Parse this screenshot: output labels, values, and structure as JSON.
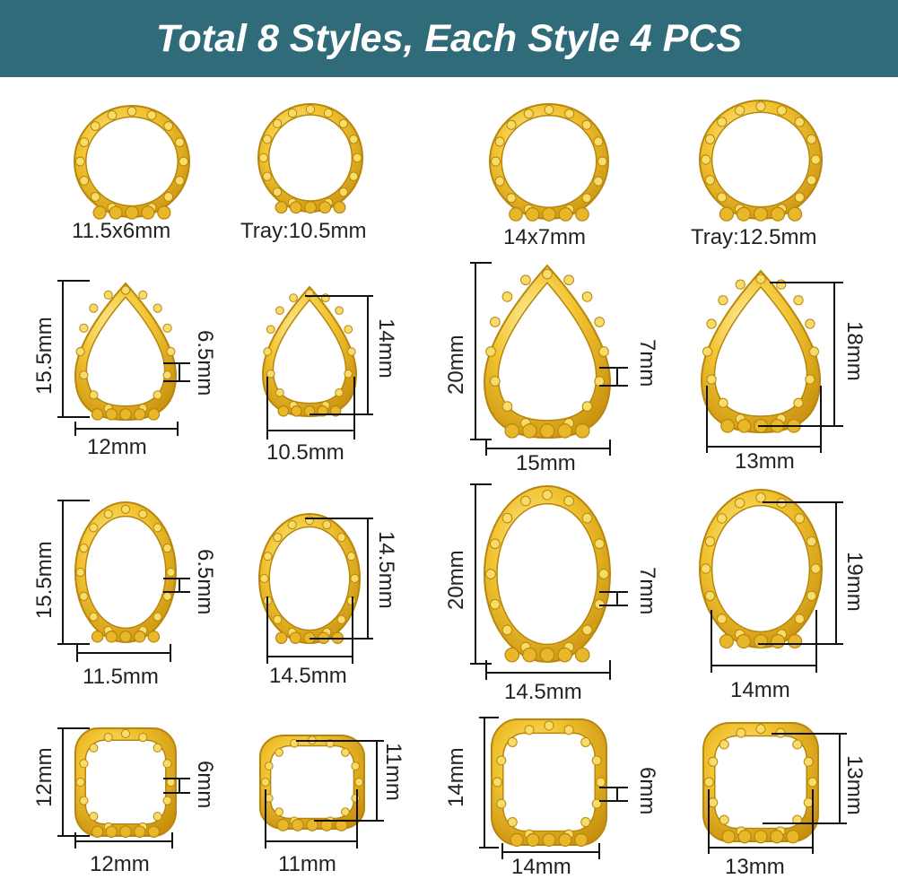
{
  "header": {
    "title": "Total 8 Styles, Each Style 4 PCS"
  },
  "colors": {
    "banner": "#2f6b79",
    "gold": "#e8b82a",
    "gold_dark": "#b8860b",
    "gold_light": "#f8dc6a"
  },
  "row1": {
    "a": "11.5x6mm",
    "b": "Tray:10.5mm",
    "c": "14x7mm",
    "d": "Tray:12.5mm"
  },
  "row2": {
    "a_h": "15.5mm",
    "a_w": "12mm",
    "a_d": "6.5mm",
    "b_h": "14mm",
    "b_w": "10.5mm",
    "c_h": "20mm",
    "c_w": "15mm",
    "c_d": "7mm",
    "d_h": "18mm",
    "d_w": "13mm"
  },
  "row3": {
    "a_h": "15.5mm",
    "a_w": "11.5mm",
    "a_d": "6.5mm",
    "b_h": "14.5mm",
    "b_w": "14.5mm",
    "c_h": "20mm",
    "c_w": "14.5mm",
    "c_d": "7mm",
    "d_h": "19mm",
    "d_w": "14mm"
  },
  "row4": {
    "a_h": "12mm",
    "a_w": "12mm",
    "a_d": "6mm",
    "b_h": "11mm",
    "b_w": "11mm",
    "c_h": "14mm",
    "c_w": "14mm",
    "c_d": "6mm",
    "d_h": "13mm",
    "d_w": "13mm"
  }
}
